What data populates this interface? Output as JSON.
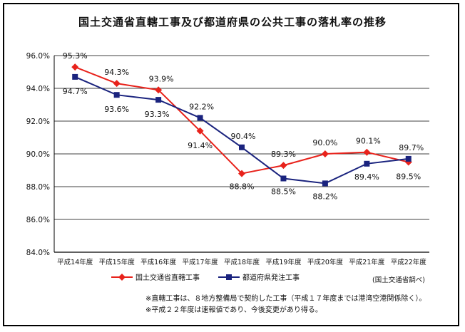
{
  "chart_data": {
    "type": "line",
    "title": "国土交通省直轄工事及び都道府県の公共工事の落札率の推移",
    "categories": [
      "平成14年度",
      "平成15年度",
      "平成16年度",
      "平成17年度",
      "平成18年度",
      "平成19年度",
      "平成20年度",
      "平成21年度",
      "平成22年度"
    ],
    "series": [
      {
        "name": "国土交通省直轄工事",
        "color": "#e8221b",
        "marker": "diamond",
        "values": [
          95.3,
          94.3,
          93.9,
          91.4,
          88.8,
          89.3,
          90.0,
          90.1,
          89.5
        ],
        "labels": [
          "95.3%",
          "94.3%",
          "93.9%",
          "91.4%",
          "88.8%",
          "89.3%",
          "90.0%",
          "90.1%",
          "89.5%"
        ]
      },
      {
        "name": "都道府県発注工事",
        "color": "#1a237e",
        "marker": "square",
        "values": [
          94.7,
          93.6,
          93.3,
          92.2,
          90.4,
          88.5,
          88.2,
          89.4,
          89.7
        ],
        "labels": [
          "94.7%",
          "93.6%",
          "93.3%",
          "92.2%",
          "90.4%",
          "88.5%",
          "88.2%",
          "89.4%",
          "89.7%"
        ]
      }
    ],
    "ylim": [
      84.0,
      96.0
    ],
    "yticks": [
      "96.0%",
      "94.0%",
      "92.0%",
      "90.0%",
      "88.0%",
      "86.0%",
      "84.0%"
    ],
    "grid": true,
    "legend_position": "bottom-center",
    "source": "(国土交通省調べ)",
    "notes": [
      "※直轄工事は、８地方整備局で契約した工事（平成１７年度までは港湾空港関係除く）。",
      "※平成２２年度は速報値であり、今後変更があり得る。"
    ]
  }
}
